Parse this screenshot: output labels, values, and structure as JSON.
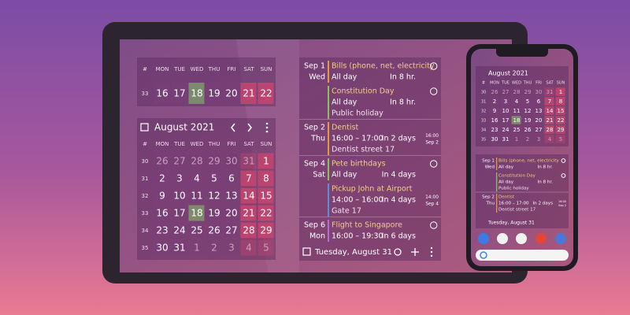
{
  "weekday_header": [
    "#",
    "MON",
    "TUE",
    "WED",
    "THU",
    "FRI",
    "SAT",
    "SUN"
  ],
  "week_widget": {
    "week": 33,
    "days": [
      16,
      17,
      18,
      19,
      20,
      21,
      22
    ]
  },
  "today": 18,
  "month_widget": {
    "title": "August 2021",
    "weeks": [
      {
        "week": 30,
        "days": [
          26,
          27,
          28,
          29,
          30,
          31,
          1
        ]
      },
      {
        "week": 31,
        "days": [
          2,
          3,
          4,
          5,
          6,
          7,
          8
        ]
      },
      {
        "week": 32,
        "days": [
          9,
          10,
          11,
          12,
          13,
          14,
          15
        ]
      },
      {
        "week": 33,
        "days": [
          16,
          17,
          18,
          19,
          20,
          21,
          22
        ]
      },
      {
        "week": 34,
        "days": [
          23,
          24,
          25,
          26,
          27,
          28,
          29
        ]
      },
      {
        "week": 35,
        "days": [
          30,
          31,
          1,
          2,
          3,
          4,
          5
        ]
      }
    ]
  },
  "agenda": {
    "groups": [
      {
        "date": "Sep 1",
        "weekday": "Wed",
        "events": [
          {
            "title": "Bills (phone, net, electricity",
            "time": "All day",
            "relative": "In 8 hr.",
            "color": "#e39a3c",
            "alarm": true
          },
          {
            "title": "Constitution Day",
            "time": "All day",
            "relative": "In 8 hr.",
            "detail": "Public holiday",
            "color": "#8fbf5a",
            "alarm": true
          }
        ]
      },
      {
        "date": "Sep 2",
        "weekday": "Thu",
        "events": [
          {
            "title": "Dentist",
            "time": "16:00 – 17:00",
            "relative": "In 2 days",
            "detail": "Dentist street 17",
            "start": "16:00",
            "start_date": "Sep 2",
            "color": "#e39a3c",
            "alarm": false
          }
        ]
      },
      {
        "date": "Sep 4",
        "weekday": "Sat",
        "events": [
          {
            "title": "Pete birthdays",
            "time": "All day",
            "relative": "In 4 days",
            "color": "#8fbf5a",
            "alarm": true
          },
          {
            "title": "Pickup John at Airport",
            "time": "14:00 – 16:00",
            "relative": "In 4 days",
            "detail": "Gate 17",
            "start": "14:00",
            "start_date": "Sep 4",
            "color": "#5b8fd6",
            "alarm": false
          }
        ]
      },
      {
        "date": "Sep 6",
        "weekday": "Mon",
        "events": [
          {
            "title": "Flight to Singapore",
            "time": "16:00 – 19:30",
            "relative": "In 6 days",
            "color": "#b070d0",
            "alarm": true
          }
        ]
      }
    ],
    "footer": "Tuesday, August 31"
  }
}
